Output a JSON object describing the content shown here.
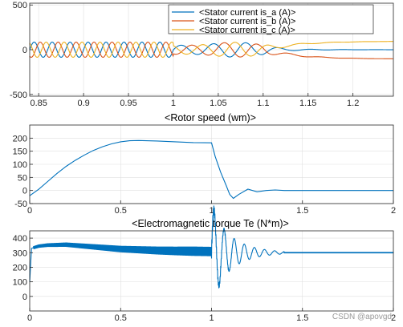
{
  "colors": {
    "blue": "#0072BD",
    "orange": "#D95319",
    "yellow": "#EDB120",
    "grid": "#dfdfdf",
    "axis": "#262626"
  },
  "watermark": "CSDN @apovgd",
  "chart_data": [
    {
      "type": "line",
      "title": "",
      "xlim": [
        0.84,
        1.245
      ],
      "ylim": [
        -520,
        520
      ],
      "xticks": [
        0.85,
        0.9,
        0.95,
        1,
        1.05,
        1.1,
        1.15,
        1.2
      ],
      "xtick_labels": [
        "0.85",
        "0.9",
        "0.95",
        "1",
        "1.05",
        "1.1",
        "1.15",
        "1.2"
      ],
      "yticks": [
        -500,
        0,
        500
      ],
      "ytick_labels": [
        "-500",
        "0",
        "500"
      ],
      "grid": true,
      "legend": "top-right",
      "series": [
        {
          "name": "<Stator current is_a (A)>",
          "color": "#0072BD"
        },
        {
          "name": "<Stator current is_b (A)>",
          "color": "#D95319"
        },
        {
          "name": "<Stator current is_c (A)>",
          "color": "#EDB120"
        }
      ],
      "description_points": {
        "steady_amplitude": 85,
        "electrical_frequency_hz": 50,
        "transient_start": 1.0,
        "peak_amplitude_transient": 130,
        "final_values": {
          "is_a": 0,
          "is_b": -105,
          "is_c": 95
        }
      }
    },
    {
      "type": "line",
      "title": "<Rotor speed (wm)>",
      "xlim": [
        0,
        2
      ],
      "ylim": [
        -50,
        250
      ],
      "xticks": [
        0,
        0.5,
        1,
        1.5,
        2
      ],
      "xtick_labels": [
        "0",
        "0.5",
        "1",
        "1.5",
        "2"
      ],
      "yticks": [
        -50,
        0,
        50,
        100,
        150,
        200
      ],
      "ytick_labels": [
        "-50",
        "0",
        "50",
        "100",
        "150",
        "200"
      ],
      "grid": true,
      "series": [
        {
          "color": "#0072BD",
          "x": [
            0,
            0.05,
            0.1,
            0.15,
            0.2,
            0.25,
            0.3,
            0.35,
            0.4,
            0.45,
            0.5,
            0.55,
            0.6,
            0.7,
            0.8,
            0.9,
            1.0,
            1.02,
            1.05,
            1.08,
            1.1,
            1.12,
            1.15,
            1.2,
            1.25,
            1.3,
            1.35,
            1.4,
            1.5,
            1.6,
            1.8,
            2.0
          ],
          "y": [
            -20,
            5,
            35,
            65,
            92,
            115,
            135,
            153,
            167,
            178,
            186,
            190,
            191,
            189,
            186,
            183,
            182,
            130,
            70,
            20,
            -15,
            -30,
            -15,
            5,
            -5,
            0,
            2,
            0,
            0,
            0,
            0,
            0
          ]
        }
      ]
    },
    {
      "type": "line",
      "title": "<Electromagnetic torque Te (N*m)>",
      "xlim": [
        0,
        2
      ],
      "ylim": [
        -100,
        450
      ],
      "xticks": [
        0,
        0.5,
        1,
        1.5,
        2
      ],
      "xtick_labels": [
        "0",
        "0.5",
        "1",
        "1.5",
        "2"
      ],
      "yticks": [
        0,
        100,
        200,
        300,
        400
      ],
      "ytick_labels": [
        "0",
        "100",
        "200",
        "300",
        "400"
      ],
      "grid": true,
      "series": [
        {
          "color": "#0072BD",
          "x": [
            0,
            0.01,
            0.05,
            0.1,
            0.2,
            0.3,
            0.4,
            0.5,
            0.6,
            0.7,
            0.8,
            0.9,
            1.0,
            1.1,
            1.2,
            1.3,
            1.4,
            1.5,
            2.0
          ],
          "y": [
            100,
            330,
            345,
            352,
            355,
            345,
            335,
            325,
            320,
            315,
            312,
            310,
            308,
            300,
            310,
            305,
            300,
            300,
            300
          ]
        }
      ]
    }
  ]
}
